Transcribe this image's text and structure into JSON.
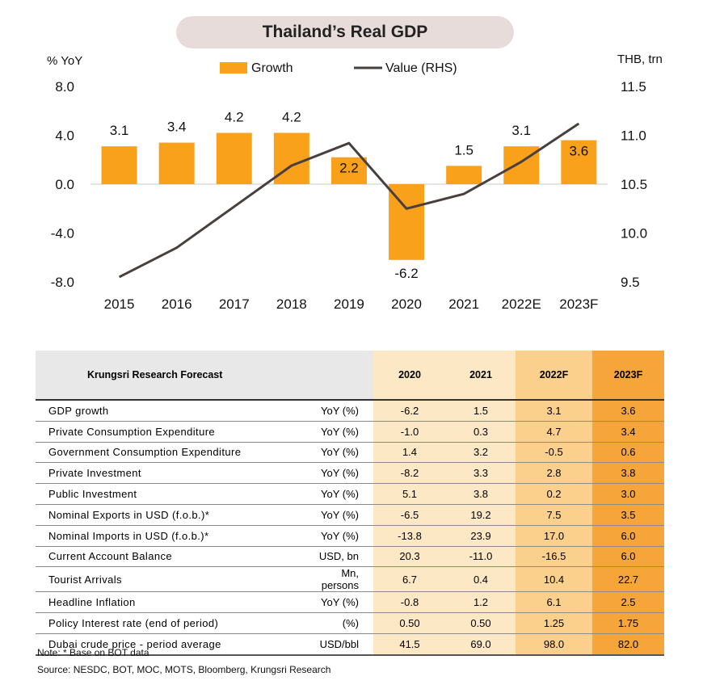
{
  "title": "Thailand’s Real GDP",
  "chart_data": {
    "type": "bar+line",
    "categories": [
      "2015",
      "2016",
      "2017",
      "2018",
      "2019",
      "2020",
      "2021",
      "2022E",
      "2023F"
    ],
    "series": [
      {
        "name": "Growth",
        "type": "bar",
        "axis": "left",
        "values": [
          3.1,
          3.4,
          4.2,
          4.2,
          2.2,
          -6.2,
          1.5,
          3.1,
          3.6
        ],
        "labels": [
          "3.1",
          "3.4",
          "4.2",
          "4.2",
          "2.2",
          "-6.2",
          "1.5",
          "3.1",
          "3.6"
        ]
      },
      {
        "name": "Value (RHS)",
        "type": "line",
        "axis": "right",
        "values": [
          9.55,
          9.85,
          10.27,
          10.69,
          10.92,
          10.25,
          10.4,
          10.73,
          11.12
        ]
      }
    ],
    "ylabel_left": "% YoY",
    "ylabel_right": "THB, trn",
    "ylim_left": [
      -8,
      8
    ],
    "ylim_right": [
      9.5,
      11.5
    ],
    "yticks_left": [
      "8.0",
      "4.0",
      "0.0",
      "-4.0",
      "-8.0"
    ],
    "yticks_right": [
      "11.5",
      "11.0",
      "10.5",
      "10.0",
      "9.5"
    ],
    "legend_position": "top-center",
    "grid": false,
    "colors": {
      "bar": "#f9a11b",
      "line": "#4a3f3f"
    }
  },
  "table": {
    "header_title": "Krungsri Research Forecast",
    "years": [
      "2020",
      "2021",
      "2022F",
      "2023F"
    ],
    "rows": [
      {
        "label": "GDP growth",
        "unit": "YoY (%)",
        "values": [
          "-6.2",
          "1.5",
          "3.1",
          "3.6"
        ]
      },
      {
        "label": "Private Consumption Expenditure",
        "unit": "YoY (%)",
        "values": [
          "-1.0",
          "0.3",
          "4.7",
          "3.4"
        ]
      },
      {
        "label": "Government Consumption Expenditure",
        "unit": "YoY (%)",
        "values": [
          "1.4",
          "3.2",
          "-0.5",
          "0.6"
        ]
      },
      {
        "label": "Private Investment",
        "unit": "YoY (%)",
        "values": [
          "-8.2",
          "3.3",
          "2.8",
          "3.8"
        ]
      },
      {
        "label": "Public Investment",
        "unit": "YoY (%)",
        "values": [
          "5.1",
          "3.8",
          "0.2",
          "3.0"
        ]
      },
      {
        "label": "Nominal Exports in USD (f.o.b.)*",
        "unit": "YoY (%)",
        "values": [
          "-6.5",
          "19.2",
          "7.5",
          "3.5"
        ]
      },
      {
        "label": "Nominal Imports in USD (f.o.b.)*",
        "unit": "YoY (%)",
        "values": [
          "-13.8",
          "23.9",
          "17.0",
          "6.0"
        ]
      },
      {
        "label": "Current Account Balance",
        "unit": "USD, bn",
        "values": [
          "20.3",
          "-11.0",
          "-16.5",
          "6.0"
        ]
      },
      {
        "label": "Tourist Arrivals",
        "unit": "Mn, persons",
        "values": [
          "6.7",
          "0.4",
          "10.4",
          "22.7"
        ]
      },
      {
        "label": "Headline Inflation",
        "unit": "YoY (%)",
        "values": [
          "-0.8",
          "1.2",
          "6.1",
          "2.5"
        ]
      },
      {
        "label": "Policy Interest rate (end of period)",
        "unit": "(%)",
        "values": [
          "0.50",
          "0.50",
          "1.25",
          "1.75"
        ]
      },
      {
        "label": "Dubai crude price - period average",
        "unit": "USD/bbl",
        "values": [
          "41.5",
          "69.0",
          "98.0",
          "82.0"
        ]
      }
    ]
  },
  "notes": {
    "note": "Note: * Base on BOT data",
    "source": "Source: NESDC, BOT, MOC, MOTS, Bloomberg, Krungsri Research"
  }
}
